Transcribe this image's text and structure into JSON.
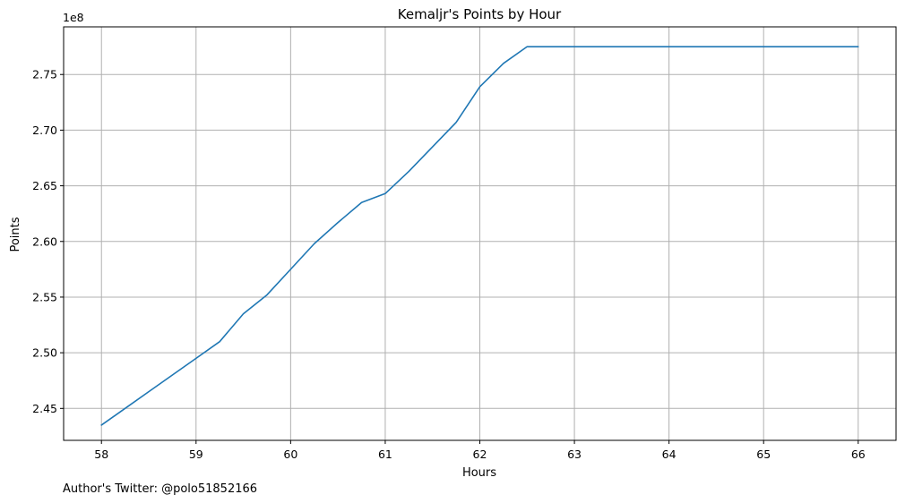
{
  "chart_data": {
    "type": "line",
    "title": "Kemaljr's Points by Hour",
    "xlabel": "Hours",
    "ylabel": "Points",
    "y_offset_label": "1e8",
    "xlim": [
      57.6,
      66.4
    ],
    "ylim": [
      2.4213,
      2.7928
    ],
    "y_scale": 100000000,
    "grid": true,
    "x_ticks": [
      58,
      59,
      60,
      61,
      62,
      63,
      64,
      65,
      66
    ],
    "y_ticks": [
      2.45,
      2.5,
      2.55,
      2.6,
      2.65,
      2.7,
      2.75
    ],
    "y_tick_labels": [
      "2.45",
      "2.50",
      "2.55",
      "2.60",
      "2.65",
      "2.70",
      "2.75"
    ],
    "series": [
      {
        "color": "#1f77b4",
        "x": [
          58,
          58.25,
          58.5,
          58.75,
          59,
          59.25,
          59.5,
          59.75,
          60,
          60.25,
          60.5,
          60.75,
          61,
          61.25,
          61.5,
          61.75,
          62,
          62.25,
          62.5,
          62.75,
          63,
          63.25,
          63.5,
          63.75,
          64,
          64.25,
          64.5,
          64.75,
          65,
          65.25,
          65.5,
          65.75,
          66
        ],
        "y": [
          2.435,
          2.45,
          2.465,
          2.48,
          2.495,
          2.51,
          2.535,
          2.552,
          2.575,
          2.598,
          2.617,
          2.635,
          2.643,
          2.663,
          2.685,
          2.707,
          2.739,
          2.76,
          2.775,
          2.775,
          2.775,
          2.775,
          2.775,
          2.775,
          2.775,
          2.775,
          2.775,
          2.775,
          2.775,
          2.775,
          2.775,
          2.775,
          2.775
        ]
      }
    ]
  },
  "footer_text": "Author's Twitter: @polo51852166"
}
